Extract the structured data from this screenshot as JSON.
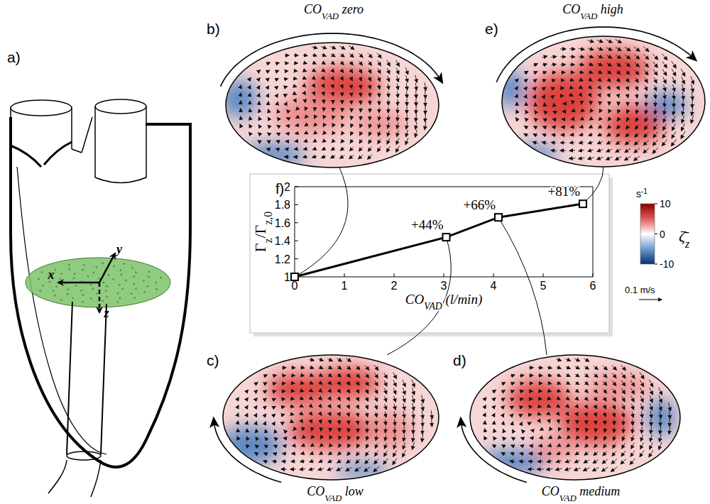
{
  "chart_data": {
    "type": "line",
    "x": [
      0,
      3.05,
      4.1,
      5.8
    ],
    "values": [
      1,
      1.44,
      1.66,
      1.81
    ],
    "xlim": [
      0,
      6
    ],
    "xticks": [
      0,
      1,
      2,
      3,
      4,
      5,
      6
    ],
    "ylim": [
      1,
      2
    ],
    "yticks": [
      1,
      1.2,
      1.4,
      1.6,
      1.8,
      2
    ],
    "x_label": [
      {
        "t": "CO"
      },
      {
        "sub": "VAD"
      },
      {
        "t": " (l/min)"
      }
    ],
    "y_label": [
      {
        "t": "Γ"
      },
      {
        "sub": "z"
      },
      {
        "t": "/Γ"
      },
      {
        "sub": "z,0"
      }
    ],
    "annotations": [
      null,
      "+44%",
      "+66%",
      "+81%"
    ],
    "color": "#000000",
    "marker": "square"
  },
  "inset_label": "f)",
  "heart": {
    "label": "a)",
    "axes": [
      "x",
      "y",
      "z"
    ]
  },
  "fields": [
    {
      "label": "b)",
      "title": [
        {
          "t": "CO"
        },
        {
          "sub": "VAD"
        },
        {
          "t": " zero"
        }
      ]
    },
    {
      "label": "c)",
      "title": [
        {
          "t": "CO"
        },
        {
          "sub": "VAD"
        },
        {
          "t": " low"
        }
      ]
    },
    {
      "label": "d)",
      "title": [
        {
          "t": "CO"
        },
        {
          "sub": "VAD"
        },
        {
          "t": " medium"
        }
      ]
    },
    {
      "label": "e)",
      "title": [
        {
          "t": "CO"
        },
        {
          "sub": "VAD"
        },
        {
          "t": " high"
        }
      ]
    }
  ],
  "colorbar": {
    "unit": [
      {
        "t": "s"
      },
      {
        "sup": "-1"
      }
    ],
    "symbol": [
      {
        "t": "ζ̄"
      },
      {
        "sub": "z"
      }
    ],
    "range": [
      -10,
      10
    ],
    "ticks": [
      10,
      0,
      -10
    ],
    "colors": [
      "#08306b",
      "#6b9bd1",
      "#ffffff",
      "#e05a5a",
      "#8b0000"
    ]
  },
  "scale_arrow": "0.1 m/s"
}
